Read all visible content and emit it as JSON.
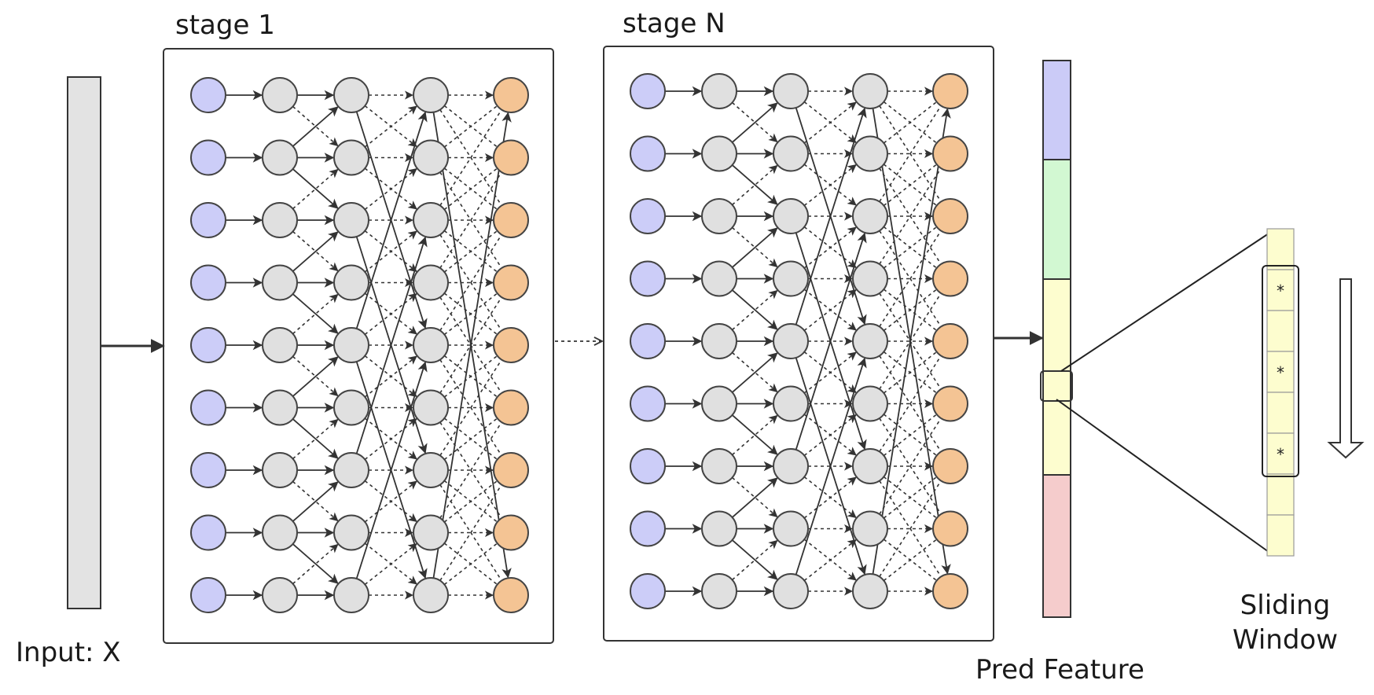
{
  "labels": {
    "stage_first": "stage 1",
    "stage_last": "stage N",
    "input": "Input: X",
    "pred_feature": "Pred Feature",
    "sliding_line1": "Sliding",
    "sliding_line2": "Window"
  },
  "network": {
    "rows": 9,
    "columns": 5,
    "input_node_color": "#cccdf8",
    "hidden_node_color": "#e0e0e0",
    "output_node_color": "#f4c494"
  },
  "pred_feature_segments": [
    {
      "color": "#cbcbf7"
    },
    {
      "color": "#d2f8d2"
    },
    {
      "color": "#fdfdcf"
    },
    {
      "color": "#f5cccc"
    }
  ],
  "window": {
    "cell_color": "#fdfdcf",
    "cells": [
      "",
      "*",
      "",
      "*",
      "",
      "*",
      "",
      ""
    ]
  },
  "input_bar_color": "#e3e3e3",
  "stroke_color": "#333333"
}
